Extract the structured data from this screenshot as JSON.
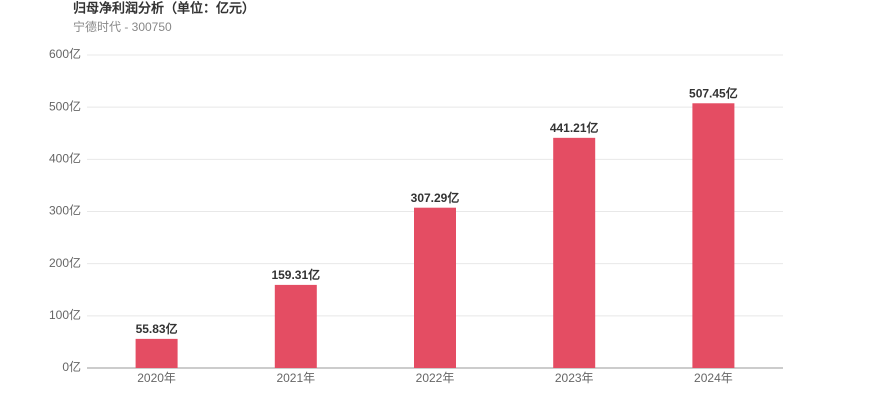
{
  "chart_data": {
    "type": "bar",
    "title": "归母净利润分析（单位：亿元）",
    "subtitle": "宁德时代 - 300750",
    "categories": [
      "2020年",
      "2021年",
      "2022年",
      "2023年",
      "2024年"
    ],
    "values": [
      55.83,
      159.31,
      307.29,
      441.21,
      507.45
    ],
    "value_labels": [
      "55.83亿",
      "159.31亿",
      "307.29亿",
      "441.21亿",
      "507.45亿"
    ],
    "color": "#e44d63",
    "ylim": [
      0,
      600
    ],
    "yticks": [
      {
        "value": 0,
        "label": "0亿"
      },
      {
        "value": 100,
        "label": "100亿"
      },
      {
        "value": 200,
        "label": "200亿"
      },
      {
        "value": 300,
        "label": "300亿"
      },
      {
        "value": 400,
        "label": "400亿"
      },
      {
        "value": 500,
        "label": "500亿"
      },
      {
        "value": 600,
        "label": "600亿"
      }
    ],
    "grid": true
  }
}
